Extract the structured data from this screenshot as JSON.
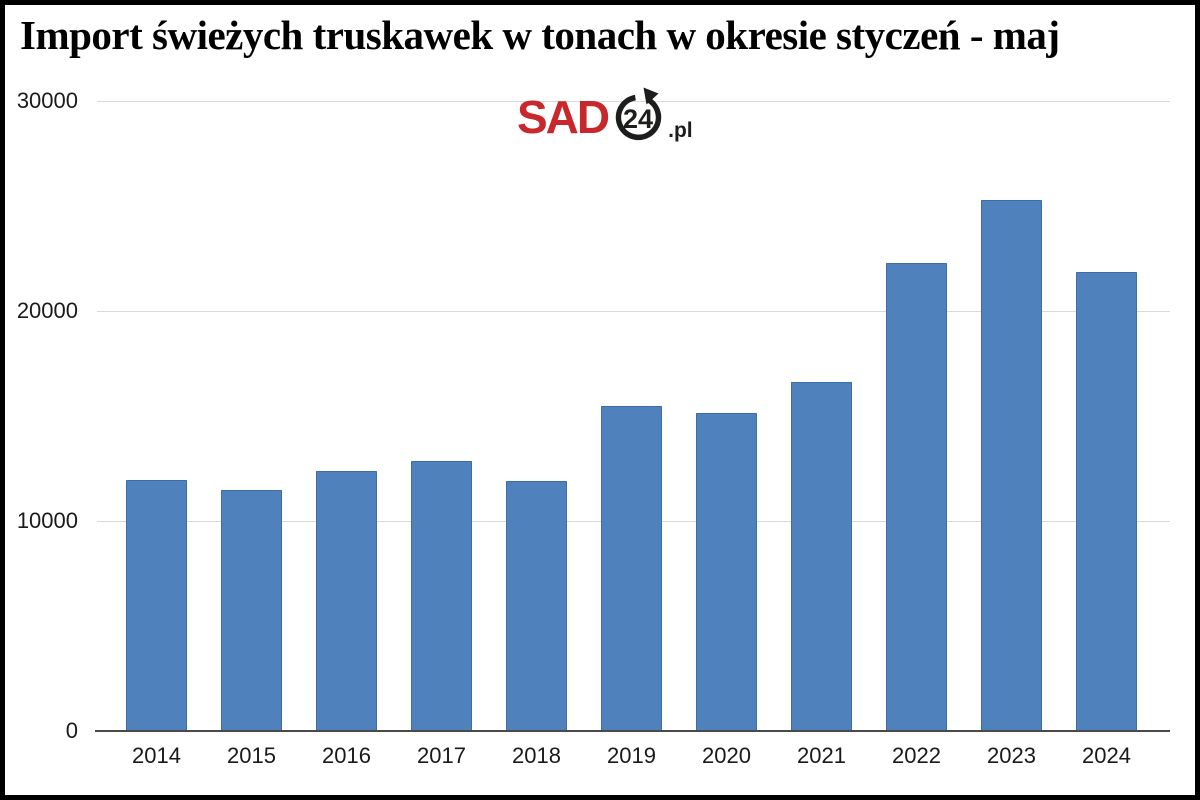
{
  "title": "Import świeżych truskawek w tonach w okresie styczeń - maj",
  "logo": {
    "brand": "SAD",
    "badge": "24",
    "suffix": ".pl"
  },
  "colors": {
    "brand_red": "#c8282c",
    "text": "#1a1a1a",
    "gridline": "#d9d9d9",
    "axis": "#4a4a4a",
    "frame_border": "#000000"
  },
  "chart_data": {
    "type": "bar",
    "title": "Import świeżych truskawek w tonach w okresie styczeń - maj",
    "categories": [
      "2014",
      "2015",
      "2016",
      "2017",
      "2018",
      "2019",
      "2020",
      "2021",
      "2022",
      "2023",
      "2024"
    ],
    "values": [
      11950,
      11500,
      12400,
      12850,
      11900,
      15500,
      15150,
      16600,
      22300,
      25300,
      21850
    ],
    "xlabel": "",
    "ylabel": "",
    "ylim": [
      0,
      30000
    ],
    "yticks": [
      0,
      10000,
      20000,
      30000
    ],
    "grid": true,
    "legend": false,
    "bar_color": "#4f81bd",
    "bar_border_color": "#3d6da3"
  }
}
